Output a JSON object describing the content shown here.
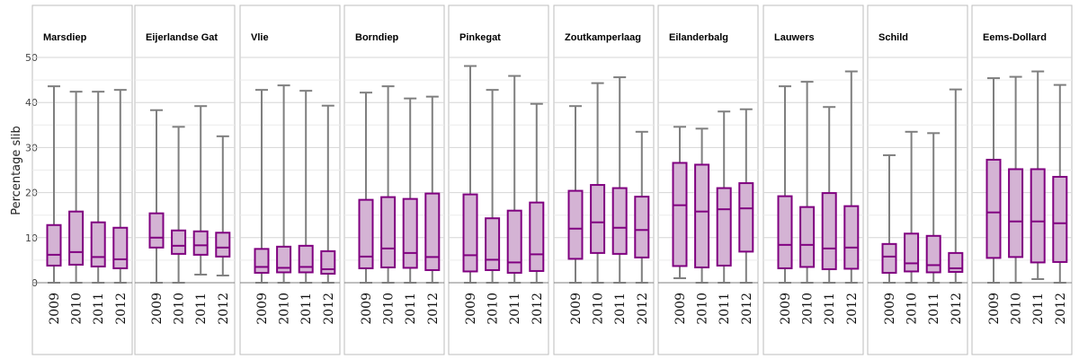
{
  "chart_data": {
    "type": "boxplot",
    "ylabel": "Percentage slib",
    "ylim": [
      0,
      50
    ],
    "yticks": [
      0,
      10,
      20,
      30,
      40,
      50
    ],
    "grid": true,
    "categories": [
      "2009",
      "2010",
      "2011",
      "2012"
    ],
    "colors": {
      "box_fill": "#d4b3d4",
      "box_stroke": "#800080",
      "whisker": "#7f7f7f",
      "grid": "#d9d9d9",
      "panel_border": "#bdbdbd"
    },
    "facets": [
      {
        "name": "Marsdiep",
        "boxes": [
          {
            "year": "2009",
            "min": 0,
            "q1": 3.8,
            "median": 6.2,
            "q3": 12.8,
            "max": 43.6
          },
          {
            "year": "2010",
            "min": 0,
            "q1": 4.0,
            "median": 6.8,
            "q3": 15.8,
            "max": 42.4
          },
          {
            "year": "2011",
            "min": 0,
            "q1": 3.6,
            "median": 5.7,
            "q3": 13.4,
            "max": 42.4
          },
          {
            "year": "2012",
            "min": 0,
            "q1": 3.2,
            "median": 5.2,
            "q3": 12.2,
            "max": 42.8
          }
        ]
      },
      {
        "name": "Eijerlandse Gat",
        "boxes": [
          {
            "year": "2009",
            "min": 0,
            "q1": 7.8,
            "median": 10.0,
            "q3": 15.4,
            "max": 38.3
          },
          {
            "year": "2010",
            "min": 0,
            "q1": 6.4,
            "median": 8.2,
            "q3": 11.6,
            "max": 34.6
          },
          {
            "year": "2011",
            "min": 1.8,
            "q1": 6.2,
            "median": 8.3,
            "q3": 11.4,
            "max": 39.2
          },
          {
            "year": "2012",
            "min": 1.6,
            "q1": 5.8,
            "median": 7.8,
            "q3": 11.1,
            "max": 32.5
          }
        ]
      },
      {
        "name": "Vlie",
        "boxes": [
          {
            "year": "2009",
            "min": 0,
            "q1": 2.2,
            "median": 3.5,
            "q3": 7.5,
            "max": 42.8
          },
          {
            "year": "2010",
            "min": 0,
            "q1": 2.3,
            "median": 3.3,
            "q3": 8.0,
            "max": 43.8
          },
          {
            "year": "2011",
            "min": 0,
            "q1": 2.3,
            "median": 3.5,
            "q3": 8.2,
            "max": 42.6
          },
          {
            "year": "2012",
            "min": 0,
            "q1": 2.0,
            "median": 3.0,
            "q3": 7.0,
            "max": 39.3
          }
        ]
      },
      {
        "name": "Borndiep",
        "boxes": [
          {
            "year": "2009",
            "min": 0,
            "q1": 3.2,
            "median": 5.8,
            "q3": 18.4,
            "max": 42.2
          },
          {
            "year": "2010",
            "min": 0,
            "q1": 3.4,
            "median": 7.6,
            "q3": 19.0,
            "max": 43.6
          },
          {
            "year": "2011",
            "min": 0,
            "q1": 3.3,
            "median": 6.6,
            "q3": 18.6,
            "max": 40.9
          },
          {
            "year": "2012",
            "min": 0,
            "q1": 2.8,
            "median": 5.7,
            "q3": 19.8,
            "max": 41.3
          }
        ]
      },
      {
        "name": "Pinkegat",
        "boxes": [
          {
            "year": "2009",
            "min": 0,
            "q1": 2.5,
            "median": 6.1,
            "q3": 19.6,
            "max": 48.1
          },
          {
            "year": "2010",
            "min": 0,
            "q1": 2.8,
            "median": 5.1,
            "q3": 14.3,
            "max": 42.8
          },
          {
            "year": "2011",
            "min": 0,
            "q1": 2.2,
            "median": 4.5,
            "q3": 16.0,
            "max": 45.9
          },
          {
            "year": "2012",
            "min": 0,
            "q1": 2.6,
            "median": 6.3,
            "q3": 17.8,
            "max": 39.7
          }
        ]
      },
      {
        "name": "Zoutkamperlaag",
        "boxes": [
          {
            "year": "2009",
            "min": 0,
            "q1": 5.3,
            "median": 12.0,
            "q3": 20.4,
            "max": 39.2
          },
          {
            "year": "2010",
            "min": 0,
            "q1": 6.6,
            "median": 13.4,
            "q3": 21.7,
            "max": 44.3
          },
          {
            "year": "2011",
            "min": 0,
            "q1": 6.4,
            "median": 12.2,
            "q3": 21.0,
            "max": 45.6
          },
          {
            "year": "2012",
            "min": 0,
            "q1": 5.6,
            "median": 11.7,
            "q3": 19.1,
            "max": 33.5
          }
        ]
      },
      {
        "name": "Eilanderbalg",
        "boxes": [
          {
            "year": "2009",
            "min": 1.0,
            "q1": 3.7,
            "median": 17.2,
            "q3": 26.6,
            "max": 34.6
          },
          {
            "year": "2010",
            "min": 0,
            "q1": 3.4,
            "median": 15.8,
            "q3": 26.2,
            "max": 34.2
          },
          {
            "year": "2011",
            "min": 0,
            "q1": 3.8,
            "median": 16.3,
            "q3": 21.0,
            "max": 38.0
          },
          {
            "year": "2012",
            "min": 0,
            "q1": 6.9,
            "median": 16.5,
            "q3": 22.1,
            "max": 38.5
          }
        ]
      },
      {
        "name": "Lauwers",
        "boxes": [
          {
            "year": "2009",
            "min": 0,
            "q1": 3.2,
            "median": 8.4,
            "q3": 19.2,
            "max": 43.6
          },
          {
            "year": "2010",
            "min": 0,
            "q1": 3.5,
            "median": 8.4,
            "q3": 16.8,
            "max": 44.6
          },
          {
            "year": "2011",
            "min": 0,
            "q1": 3.0,
            "median": 7.6,
            "q3": 19.9,
            "max": 39.0
          },
          {
            "year": "2012",
            "min": 0,
            "q1": 3.1,
            "median": 7.8,
            "q3": 17.0,
            "max": 46.9
          }
        ]
      },
      {
        "name": "Schild",
        "boxes": [
          {
            "year": "2009",
            "min": 0,
            "q1": 2.2,
            "median": 5.8,
            "q3": 8.6,
            "max": 28.3
          },
          {
            "year": "2010",
            "min": 0,
            "q1": 2.5,
            "median": 4.3,
            "q3": 10.9,
            "max": 33.5
          },
          {
            "year": "2011",
            "min": 0,
            "q1": 2.3,
            "median": 3.9,
            "q3": 10.4,
            "max": 33.2
          },
          {
            "year": "2012",
            "min": 0,
            "q1": 2.4,
            "median": 3.2,
            "q3": 6.6,
            "max": 42.9
          }
        ]
      },
      {
        "name": "Eems-Dollard",
        "boxes": [
          {
            "year": "2009",
            "min": 0,
            "q1": 5.5,
            "median": 15.6,
            "q3": 27.3,
            "max": 45.4
          },
          {
            "year": "2010",
            "min": 0,
            "q1": 5.7,
            "median": 13.6,
            "q3": 25.2,
            "max": 45.7
          },
          {
            "year": "2011",
            "min": 0.8,
            "q1": 4.5,
            "median": 13.6,
            "q3": 25.2,
            "max": 46.9
          },
          {
            "year": "2012",
            "min": 0,
            "q1": 4.6,
            "median": 13.2,
            "q3": 23.5,
            "max": 43.9
          }
        ]
      }
    ]
  }
}
